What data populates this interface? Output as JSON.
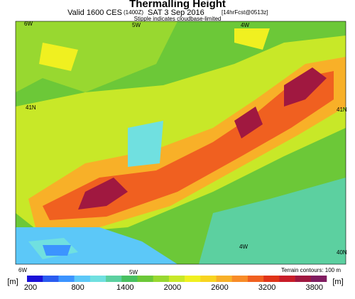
{
  "header": {
    "title": "Thermalling Height",
    "valid": "Valid 1600 CES",
    "zulu": "(1400Z)",
    "date": "SAT 3 Sep 2016",
    "forecast": "[14hrFcst@0513z]",
    "note": "Stipple indicates cloudbase-limited"
  },
  "map": {
    "labels": [
      "6W",
      "5W",
      "4W",
      "41N",
      "41N",
      "4W",
      "40N",
      "6W",
      "5W"
    ],
    "contours": "Terrain contours: 100 m"
  },
  "colorbar": {
    "unit": "[m]",
    "range": [
      200,
      4000
    ],
    "colors": [
      "#1a10d8",
      "#2a5cf0",
      "#3c94ff",
      "#5cc8f8",
      "#70e0e0",
      "#5cd0a0",
      "#48c060",
      "#6cc838",
      "#98d830",
      "#c8e828",
      "#f0f020",
      "#f8d420",
      "#f8b028",
      "#f88c28",
      "#f06020",
      "#e03418",
      "#c81c28",
      "#a01840",
      "#801c60"
    ],
    "ticks": [
      200,
      800,
      1400,
      2000,
      2600,
      3200,
      3800
    ]
  }
}
